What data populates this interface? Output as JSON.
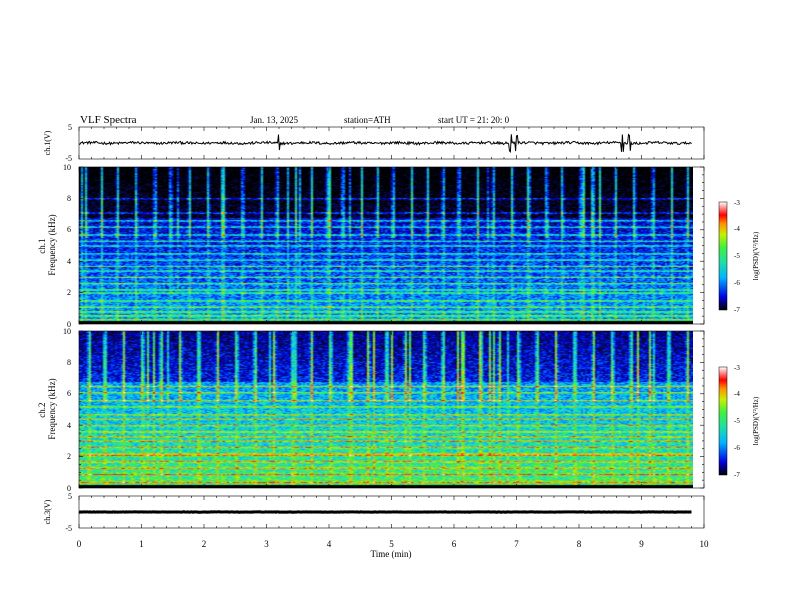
{
  "header": {
    "title": "VLF  Spectra",
    "date": "Jan.  13,  2025",
    "station": "station=ATH",
    "start": "start  UT  =    21: 20: 0"
  },
  "colors": {
    "background": "#ffffff",
    "trace": "#000000",
    "colormap": [
      "#000000",
      "#0a0a5c",
      "#0000e0",
      "#0050ff",
      "#00b4ff",
      "#20e0c0",
      "#40f040",
      "#c8f000",
      "#ff9000",
      "#ff0000",
      "#ffffff"
    ]
  },
  "chart_data": [
    {
      "id": "ch1_waveform",
      "type": "line",
      "ylabel": "ch.1(V)",
      "ylim": [
        -5,
        5
      ],
      "y_ticks": [
        "5",
        "-5"
      ],
      "xlim": [
        0,
        10
      ],
      "x_extent": 9.8,
      "series": [
        {
          "level": 0.0,
          "noise_amplitude": 0.4,
          "spikes_min": [
            3.2,
            6.9,
            7.0,
            8.7,
            8.8
          ]
        }
      ]
    },
    {
      "id": "ch1_spectrogram",
      "type": "heatmap",
      "ylabel": "ch.1\nFrequency  (kHz)",
      "ylim": [
        0,
        10
      ],
      "y_ticks": [
        "0",
        "2",
        "4",
        "6",
        "8",
        "10"
      ],
      "xlim": [
        0,
        10
      ],
      "x_extent": 9.8,
      "colorbar": {
        "label": "log(PSD)(V²/Hz)",
        "range": [
          -7,
          -3
        ],
        "ticks": [
          "-3",
          "-4",
          "-5",
          "-6",
          "-7"
        ]
      },
      "base_psd": -6.1,
      "lines_khz": [
        0.3,
        0.55,
        0.8,
        1.1,
        1.5,
        2.0,
        2.2,
        2.6,
        3.0,
        3.4,
        3.7,
        4.1,
        4.5,
        5.0,
        5.3,
        5.7,
        6.2,
        6.6,
        7.1,
        8.0
      ],
      "broadband_events_min": [
        0.1,
        0.35,
        0.6,
        0.9,
        1.2,
        1.45,
        1.75,
        2.05,
        2.3,
        2.6,
        2.9,
        3.15,
        3.45,
        3.7,
        3.95,
        4.2,
        4.5,
        4.75,
        5.0,
        5.3,
        5.55,
        5.8,
        6.05,
        6.35,
        6.6,
        6.9,
        7.15,
        7.45,
        7.7,
        8.0,
        8.3,
        8.55,
        8.85,
        9.15,
        9.45,
        9.7
      ]
    },
    {
      "id": "ch2_spectrogram",
      "type": "heatmap",
      "ylabel": "ch.2\nFrequency  (kHz)",
      "ylim": [
        0,
        10
      ],
      "y_ticks": [
        "0",
        "2",
        "4",
        "6",
        "8",
        "10"
      ],
      "xlim": [
        0,
        10
      ],
      "x_extent": 9.8,
      "colorbar": {
        "label": "log(PSD)(V²/Hz)",
        "range": [
          -7,
          -3
        ],
        "ticks": [
          "-3",
          "-4",
          "-5",
          "-6",
          "-7"
        ]
      },
      "base_psd": -5.4,
      "lines_khz": [
        0.4,
        0.9,
        1.3,
        1.7,
        2.1,
        2.2,
        2.6,
        3.0,
        3.3,
        3.6,
        4.0,
        4.4,
        4.7,
        5.2,
        5.6,
        6.1,
        6.5
      ],
      "broadband_events_min": [
        0.15,
        0.4,
        0.7,
        1.0,
        1.3,
        1.6,
        1.9,
        2.2,
        2.5,
        2.8,
        3.1,
        3.4,
        3.7,
        4.0,
        4.3,
        4.6,
        4.9,
        5.2,
        5.5,
        5.8,
        6.1,
        6.4,
        6.7,
        7.0,
        7.3,
        7.6,
        7.9,
        8.2,
        8.5,
        8.8,
        9.1,
        9.4,
        9.7
      ]
    },
    {
      "id": "ch3_waveform",
      "type": "line",
      "ylabel": "ch.3(V)",
      "ylim": [
        -5,
        5
      ],
      "y_ticks": [
        "5",
        "-5"
      ],
      "xlim": [
        0,
        10
      ],
      "x_extent": 9.8,
      "x_ticks": [
        "0",
        "1",
        "2",
        "3",
        "4",
        "5",
        "6",
        "7",
        "8",
        "9",
        "10"
      ],
      "xlabel": "Time  (min)",
      "series": [
        {
          "level": 0.0,
          "noise_amplitude": 0.05,
          "spikes_min": []
        }
      ]
    }
  ]
}
